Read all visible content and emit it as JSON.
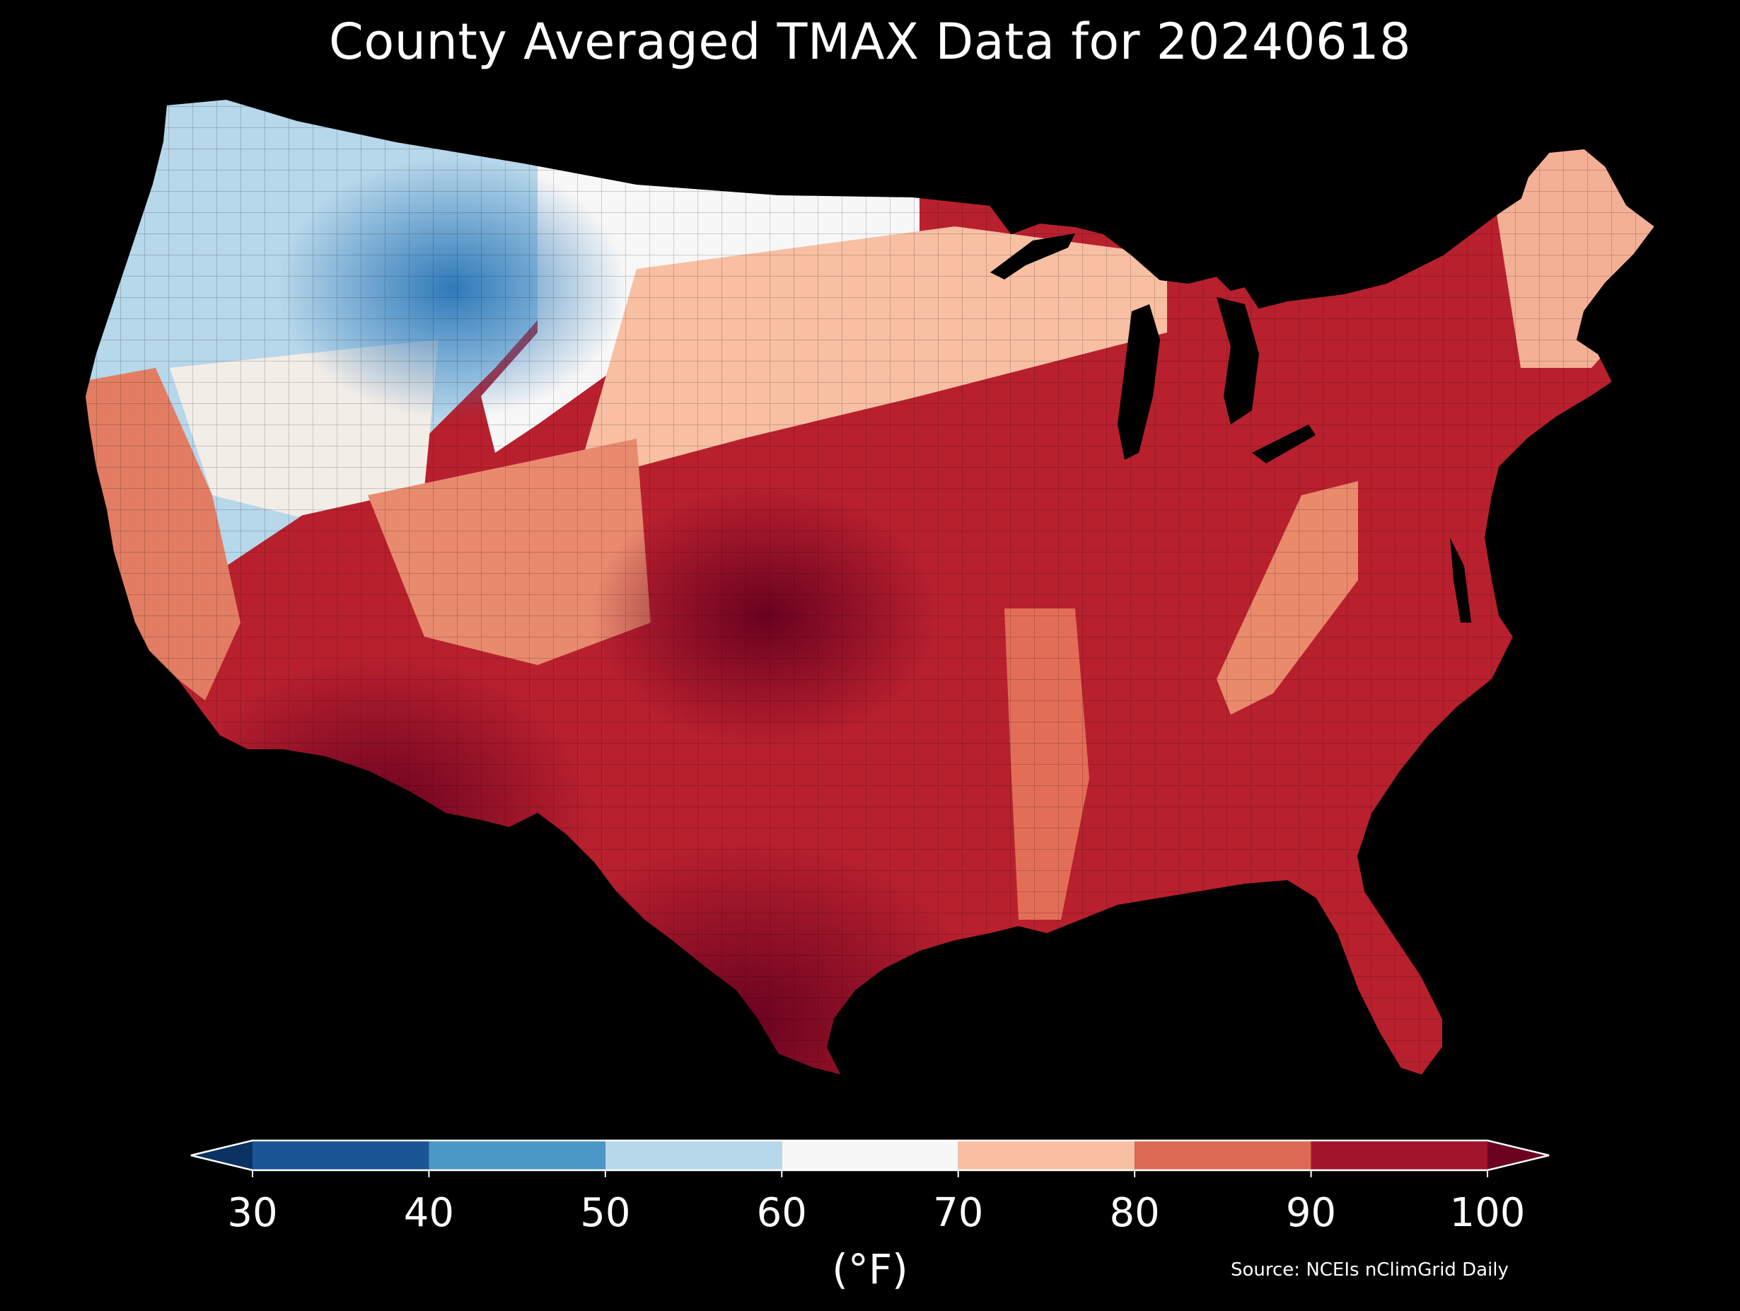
{
  "title": "County Averaged TMAX Data for 20240618",
  "colorbar": {
    "unit": "(°F)",
    "ticks": [
      "30",
      "40",
      "50",
      "60",
      "70",
      "80",
      "90",
      "100"
    ],
    "bins": [
      {
        "from": 30,
        "to": 40,
        "color": "#1a5596"
      },
      {
        "from": 40,
        "to": 50,
        "color": "#4b98c6"
      },
      {
        "from": 50,
        "to": 60,
        "color": "#b7d7ea"
      },
      {
        "from": 60,
        "to": 70,
        "color": "#f7f7f7"
      },
      {
        "from": 70,
        "to": 80,
        "color": "#f8bfa3"
      },
      {
        "from": 80,
        "to": 90,
        "color": "#dc6a55"
      },
      {
        "from": 90,
        "to": 100,
        "color": "#a1142b"
      }
    ],
    "under_color": "#0c3263",
    "over_color": "#6a0220"
  },
  "source": "Source: NCEIs nClimGrid Daily",
  "map_colors": {
    "background": "#000000",
    "border": "#2a1a1a"
  }
}
